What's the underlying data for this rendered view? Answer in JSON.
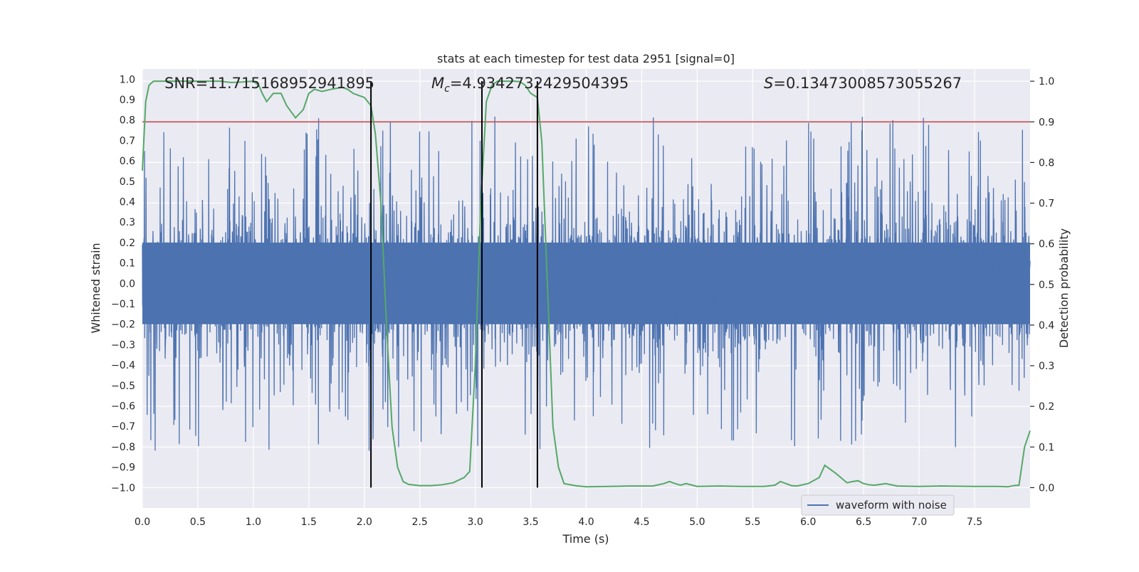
{
  "chart_data": {
    "type": "line",
    "title": "stats at each timestep for test data 2951 [signal=0]",
    "xlabel": "Time (s)",
    "ylabel_left": "Whitened strain",
    "ylabel_right": "Detection probability",
    "xlim": [
      0,
      8
    ],
    "ylim_left": [
      -1.1,
      1.05
    ],
    "ylim_right": [
      -0.05,
      1.03
    ],
    "x_ticks": [
      0.0,
      0.5,
      1.0,
      1.5,
      2.0,
      2.5,
      3.0,
      3.5,
      4.0,
      4.5,
      5.0,
      5.5,
      6.0,
      6.5,
      7.0,
      7.5
    ],
    "x_tick_labels": [
      "0.0",
      "0.5",
      "1.0",
      "1.5",
      "2.0",
      "2.5",
      "3.0",
      "3.5",
      "4.0",
      "4.5",
      "5.0",
      "5.5",
      "6.0",
      "6.5",
      "7.0",
      "7.5"
    ],
    "y_left_ticks": [
      1.0,
      0.9,
      0.8,
      0.7,
      0.6,
      0.5,
      0.4,
      0.3,
      0.2,
      0.1,
      0.0,
      -0.1,
      -0.2,
      -0.3,
      -0.4,
      -0.5,
      -0.6,
      -0.7,
      -0.8,
      -0.9,
      -1.0
    ],
    "y_left_tick_labels": [
      "1.0",
      "0.9",
      "0.8",
      "0.7",
      "0.6",
      "0.5",
      "0.4",
      "0.3",
      "0.2",
      "0.1",
      "0.0",
      "−0.1",
      "−0.2",
      "−0.3",
      "−0.4",
      "−0.5",
      "−0.6",
      "−0.7",
      "−0.8",
      "−0.9",
      "−1.0"
    ],
    "y_right_ticks": [
      1.0,
      0.9,
      0.8,
      0.7,
      0.6,
      0.5,
      0.4,
      0.3,
      0.2,
      0.1,
      0.0
    ],
    "y_right_tick_labels": [
      "1.0",
      "0.9",
      "0.8",
      "0.7",
      "0.6",
      "0.5",
      "0.4",
      "0.3",
      "0.2",
      "0.1",
      "0.0"
    ],
    "grid": true,
    "legend_position": "bottom-right",
    "annotations": {
      "snr": "SNR=11.715168952941895",
      "mc": "=4.9342732429504395",
      "mc_symbol": "M",
      "mc_subscript": "c",
      "s": "=0.13473008573055267",
      "s_symbol": "S"
    },
    "threshold": 0.9,
    "vertical_lines_x": [
      2.06,
      3.06,
      3.56
    ],
    "series": [
      {
        "name": "waveform with noise",
        "axis": "left",
        "color": "#4c72b0",
        "kind": "noise",
        "sample_count": 4096,
        "core_amplitude": 0.2,
        "peak_envelope": [
          0.92,
          0.85
        ]
      },
      {
        "axis": "right",
        "color": "#55a868",
        "x": [
          0.0,
          0.03,
          0.06,
          0.1,
          0.15,
          0.2,
          0.3,
          0.5,
          0.7,
          0.8,
          0.9,
          1.0,
          1.05,
          1.08,
          1.12,
          1.18,
          1.25,
          1.3,
          1.38,
          1.45,
          1.5,
          1.55,
          1.62,
          1.7,
          1.8,
          1.85,
          1.9,
          1.95,
          2.0,
          2.06,
          2.1,
          2.15,
          2.2,
          2.25,
          2.3,
          2.35,
          2.4,
          2.5,
          2.6,
          2.7,
          2.8,
          2.9,
          2.95,
          3.0,
          3.05,
          3.1,
          3.15,
          3.2,
          3.3,
          3.35,
          3.4,
          3.45,
          3.5,
          3.56,
          3.6,
          3.65,
          3.7,
          3.75,
          3.8,
          3.9,
          4.0,
          4.2,
          4.4,
          4.6,
          4.7,
          4.75,
          4.8,
          4.85,
          4.9,
          5.0,
          5.2,
          5.4,
          5.6,
          5.7,
          5.75,
          5.8,
          5.85,
          5.9,
          6.0,
          6.1,
          6.15,
          6.25,
          6.35,
          6.4,
          6.45,
          6.5,
          6.55,
          6.6,
          6.7,
          6.8,
          7.0,
          7.2,
          7.5,
          7.7,
          7.8,
          7.85,
          7.9,
          7.95,
          8.0
        ],
        "y": [
          0.78,
          0.95,
          0.99,
          1.0,
          1.0,
          1.0,
          1.0,
          1.0,
          1.0,
          0.997,
          0.998,
          1.0,
          0.99,
          0.97,
          0.95,
          0.97,
          0.97,
          0.94,
          0.91,
          0.93,
          0.97,
          0.98,
          0.975,
          0.98,
          0.985,
          0.98,
          0.97,
          0.965,
          0.96,
          0.94,
          0.87,
          0.7,
          0.4,
          0.15,
          0.05,
          0.015,
          0.008,
          0.005,
          0.005,
          0.007,
          0.012,
          0.025,
          0.04,
          0.3,
          0.7,
          0.95,
          0.99,
          1.0,
          1.0,
          1.0,
          0.999,
          0.99,
          0.97,
          0.96,
          0.85,
          0.5,
          0.15,
          0.05,
          0.01,
          0.005,
          0.002,
          0.003,
          0.004,
          0.004,
          0.01,
          0.015,
          0.01,
          0.006,
          0.01,
          0.003,
          0.004,
          0.003,
          0.003,
          0.006,
          0.015,
          0.01,
          0.005,
          0.004,
          0.01,
          0.025,
          0.055,
          0.035,
          0.012,
          0.015,
          0.017,
          0.01,
          0.007,
          0.006,
          0.01,
          0.004,
          0.003,
          0.004,
          0.003,
          0.003,
          0.002,
          0.005,
          0.006,
          0.1,
          0.14
        ]
      }
    ]
  }
}
